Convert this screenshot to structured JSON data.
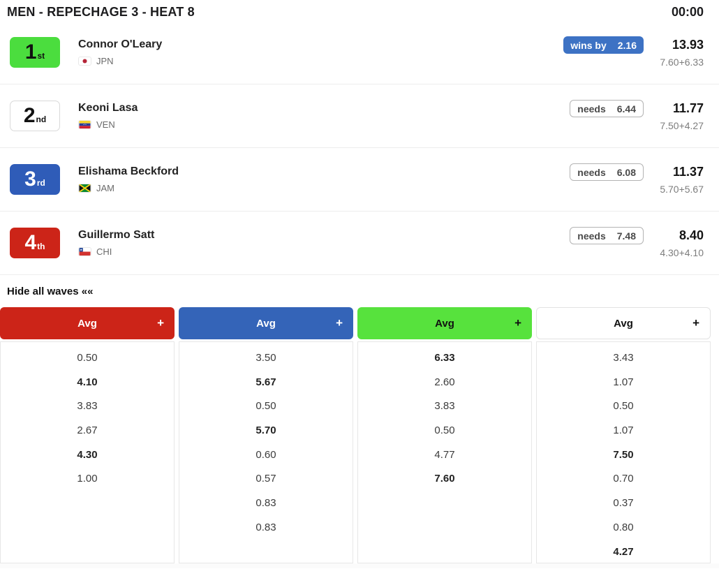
{
  "header": {
    "title": "MEN - REPECHAGE 3 - HEAT 8",
    "timer": "00:00"
  },
  "athletes": [
    {
      "rank": "1",
      "rank_suffix": "st",
      "rank_bg": "#4bdd3e",
      "rank_fg": "#111111",
      "name": "Connor O'Leary",
      "country": "JPN",
      "status": {
        "type": "wins",
        "label": "wins by",
        "value": "2.16"
      },
      "total": "13.93",
      "breakdown": "7.60+6.33"
    },
    {
      "rank": "2",
      "rank_suffix": "nd",
      "rank_bg": "#ffffff",
      "rank_fg": "#111111",
      "rank_border": "#d9d9d9",
      "name": "Keoni Lasa",
      "country": "VEN",
      "status": {
        "type": "needs",
        "label": "needs",
        "value": "6.44"
      },
      "total": "11.77",
      "breakdown": "7.50+4.27"
    },
    {
      "rank": "3",
      "rank_suffix": "rd",
      "rank_bg": "#2f5cb8",
      "rank_fg": "#ffffff",
      "name": "Elishama Beckford",
      "country": "JAM",
      "status": {
        "type": "needs",
        "label": "needs",
        "value": "6.08"
      },
      "total": "11.37",
      "breakdown": "5.70+5.67"
    },
    {
      "rank": "4",
      "rank_suffix": "th",
      "rank_bg": "#cc2418",
      "rank_fg": "#ffffff",
      "name": "Guillermo Satt",
      "country": "CHI",
      "status": {
        "type": "needs",
        "label": "needs",
        "value": "7.48"
      },
      "total": "8.40",
      "breakdown": "4.30+4.10"
    }
  ],
  "waves_toggle": "Hide all waves ««",
  "wave_columns": [
    {
      "label": "Avg",
      "plus": "+",
      "color": "#cc2418",
      "text_color": "#ffffff",
      "values": [
        {
          "v": "0.50",
          "bold": false
        },
        {
          "v": "4.10",
          "bold": true
        },
        {
          "v": "3.83",
          "bold": false
        },
        {
          "v": "2.67",
          "bold": false
        },
        {
          "v": "4.30",
          "bold": true
        },
        {
          "v": "1.00",
          "bold": false
        }
      ]
    },
    {
      "label": "Avg",
      "plus": "+",
      "color": "#3464b8",
      "text_color": "#ffffff",
      "values": [
        {
          "v": "3.50",
          "bold": false
        },
        {
          "v": "5.67",
          "bold": true
        },
        {
          "v": "0.50",
          "bold": false
        },
        {
          "v": "5.70",
          "bold": true
        },
        {
          "v": "0.60",
          "bold": false
        },
        {
          "v": "0.57",
          "bold": false
        },
        {
          "v": "0.83",
          "bold": false
        },
        {
          "v": "0.83",
          "bold": false
        }
      ]
    },
    {
      "label": "Avg",
      "plus": "+",
      "color": "#57e23d",
      "text_color": "#111111",
      "values": [
        {
          "v": "6.33",
          "bold": true
        },
        {
          "v": "2.60",
          "bold": false
        },
        {
          "v": "3.83",
          "bold": false
        },
        {
          "v": "0.50",
          "bold": false
        },
        {
          "v": "4.77",
          "bold": false
        },
        {
          "v": "7.60",
          "bold": true
        }
      ]
    },
    {
      "label": "Avg",
      "plus": "+",
      "color": "#ffffff",
      "text_color": "#111111",
      "border": "#e2e2e2",
      "values": [
        {
          "v": "3.43",
          "bold": false
        },
        {
          "v": "1.07",
          "bold": false
        },
        {
          "v": "0.50",
          "bold": false
        },
        {
          "v": "1.07",
          "bold": false
        },
        {
          "v": "7.50",
          "bold": true
        },
        {
          "v": "0.70",
          "bold": false
        },
        {
          "v": "0.37",
          "bold": false
        },
        {
          "v": "0.80",
          "bold": false
        },
        {
          "v": "4.27",
          "bold": true
        }
      ]
    }
  ]
}
